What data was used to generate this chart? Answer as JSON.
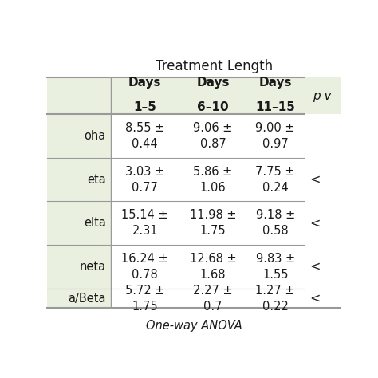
{
  "title": "Treatment Length",
  "col_headers_line1": [
    "Days",
    "Days",
    "Days"
  ],
  "col_headers_line2": [
    "1–5",
    "6–10",
    "11–15"
  ],
  "pv_label": "p v",
  "row_label_display": [
    "oha",
    "eta",
    "elta",
    "neta",
    "a/Beta"
  ],
  "cells": [
    [
      "8.55 ±\n0.44",
      "9.06 ±\n0.87",
      "9.00 ±\n0.97",
      ""
    ],
    [
      "3.03 ±\n0.77",
      "5.86 ±\n1.06",
      "7.75 ±\n0.24",
      "<"
    ],
    [
      "15.14 ±\n2.31",
      "11.98 ±\n1.75",
      "9.18 ±\n0.58",
      "<"
    ],
    [
      "16.24 ±\n0.78",
      "12.68 ±\n1.68",
      "9.83 ±\n1.55",
      "<"
    ],
    [
      "5.72 ±\n1.75",
      "2.27 ±\n0.7",
      "1.27 ±\n0.22",
      "<"
    ]
  ],
  "footer": "One-way ANOVA",
  "header_bg": "#eaf0e0",
  "row_label_bg": "#eaf0e0",
  "cell_bg": "#ffffff",
  "text_color": "#1a1a1a",
  "border_color": "#999999",
  "title_fontsize": 12,
  "header_fontsize": 11,
  "cell_fontsize": 10.5,
  "row_label_fontsize": 10.5,
  "footer_fontsize": 10.5
}
